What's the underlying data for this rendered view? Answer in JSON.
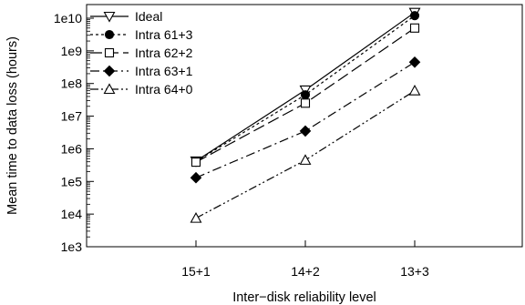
{
  "chart_data": {
    "type": "line",
    "title": "",
    "xlabel": "Inter−disk reliability level",
    "ylabel": "Mean time to data loss (hours)",
    "y_scale": "log",
    "ylim": [
      1000,
      10000000000
    ],
    "yticks": [
      {
        "value": 1000,
        "label": "1e3"
      },
      {
        "value": 10000,
        "label": "1e4"
      },
      {
        "value": 100000,
        "label": "1e5"
      },
      {
        "value": 1000000,
        "label": "1e6"
      },
      {
        "value": 10000000,
        "label": "1e7"
      },
      {
        "value": 100000000,
        "label": "1e8"
      },
      {
        "value": 1000000000,
        "label": "1e9"
      },
      {
        "value": 10000000000,
        "label": "1e10"
      }
    ],
    "categories": [
      "15+1",
      "14+2",
      "13+3"
    ],
    "legend_position": "top-left",
    "grid": false,
    "series": [
      {
        "name": "Ideal",
        "values": [
          420000,
          63000000,
          15000000000
        ],
        "marker": "triangle-down-open",
        "dash": "solid"
      },
      {
        "name": "Intra 61+3",
        "values": [
          410000,
          45000000,
          12000000000
        ],
        "marker": "circle-filled",
        "dash": "dotted"
      },
      {
        "name": "Intra 62+2",
        "values": [
          390000,
          25000000,
          5000000000
        ],
        "marker": "square-open",
        "dash": "long-dash"
      },
      {
        "name": "Intra 63+1",
        "values": [
          130000,
          3500000,
          450000000
        ],
        "marker": "diamond-filled",
        "dash": "dash-dot"
      },
      {
        "name": "Intra 64+0",
        "values": [
          7500,
          450000,
          60000000
        ],
        "marker": "triangle-up-open",
        "dash": "dash-dot-dot"
      }
    ],
    "colors": {
      "line": "#000000",
      "background": "#ffffff"
    }
  }
}
